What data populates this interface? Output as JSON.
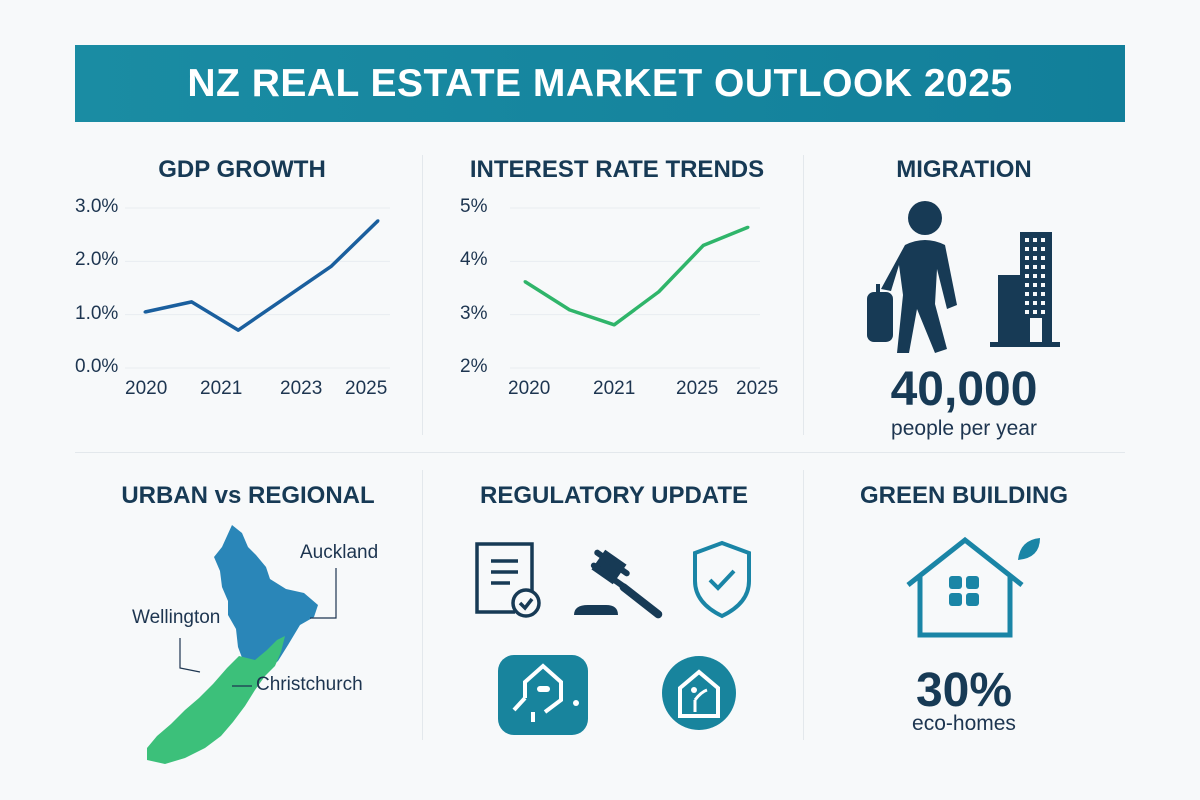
{
  "title": "NZ REAL ESTATE MARKET OUTLOOK 2025",
  "panels": {
    "gdp": {
      "title": "GDP GROWTH"
    },
    "interest": {
      "title": "INTEREST RATE TRENDS"
    },
    "migration": {
      "title": "MIGRATION",
      "value": "40,000",
      "caption": "people per year",
      "icons": [
        "person-with-luggage-icon",
        "building-icon"
      ]
    },
    "urban": {
      "title": "URBAN vs REGIONAL",
      "labels": {
        "auckland": "Auckland",
        "wellington": "Wellington",
        "christchurch": "Christchurch"
      },
      "colors": {
        "north_island": "#2a86b8",
        "south_island": "#3cc07a"
      }
    },
    "regulatory": {
      "title": "REGULATORY UPDATE",
      "icons": [
        "document-check-icon",
        "gavel-icon",
        "shield-check-icon",
        "smart-home-icon",
        "eco-home-icon"
      ]
    },
    "green": {
      "title": "GREEN BUILDING",
      "value": "30%",
      "caption": "eco-homes",
      "icons": [
        "house-leaf-icon"
      ]
    }
  },
  "chart_data": [
    {
      "type": "line",
      "title": "GDP GROWTH",
      "yticks": [
        "3.0%",
        "2.0%",
        "1.0%",
        "0.0%"
      ],
      "ylim": [
        0,
        3
      ],
      "xticks": [
        "2020",
        "2021",
        "2023",
        "2025"
      ],
      "values": [
        1.05,
        1.24,
        0.71,
        1.31,
        1.91,
        2.76
      ],
      "color": "#1a5f9e",
      "grid": true
    },
    {
      "type": "line",
      "title": "INTEREST RATE TRENDS",
      "yticks": [
        "5%",
        "4%",
        "3%",
        "2%"
      ],
      "ylim": [
        2,
        5
      ],
      "xticks": [
        "2020",
        "2021",
        "2025",
        "2025"
      ],
      "values": [
        3.62,
        3.09,
        2.81,
        3.43,
        4.3,
        4.64
      ],
      "color": "#2fb56a",
      "grid": true
    }
  ]
}
